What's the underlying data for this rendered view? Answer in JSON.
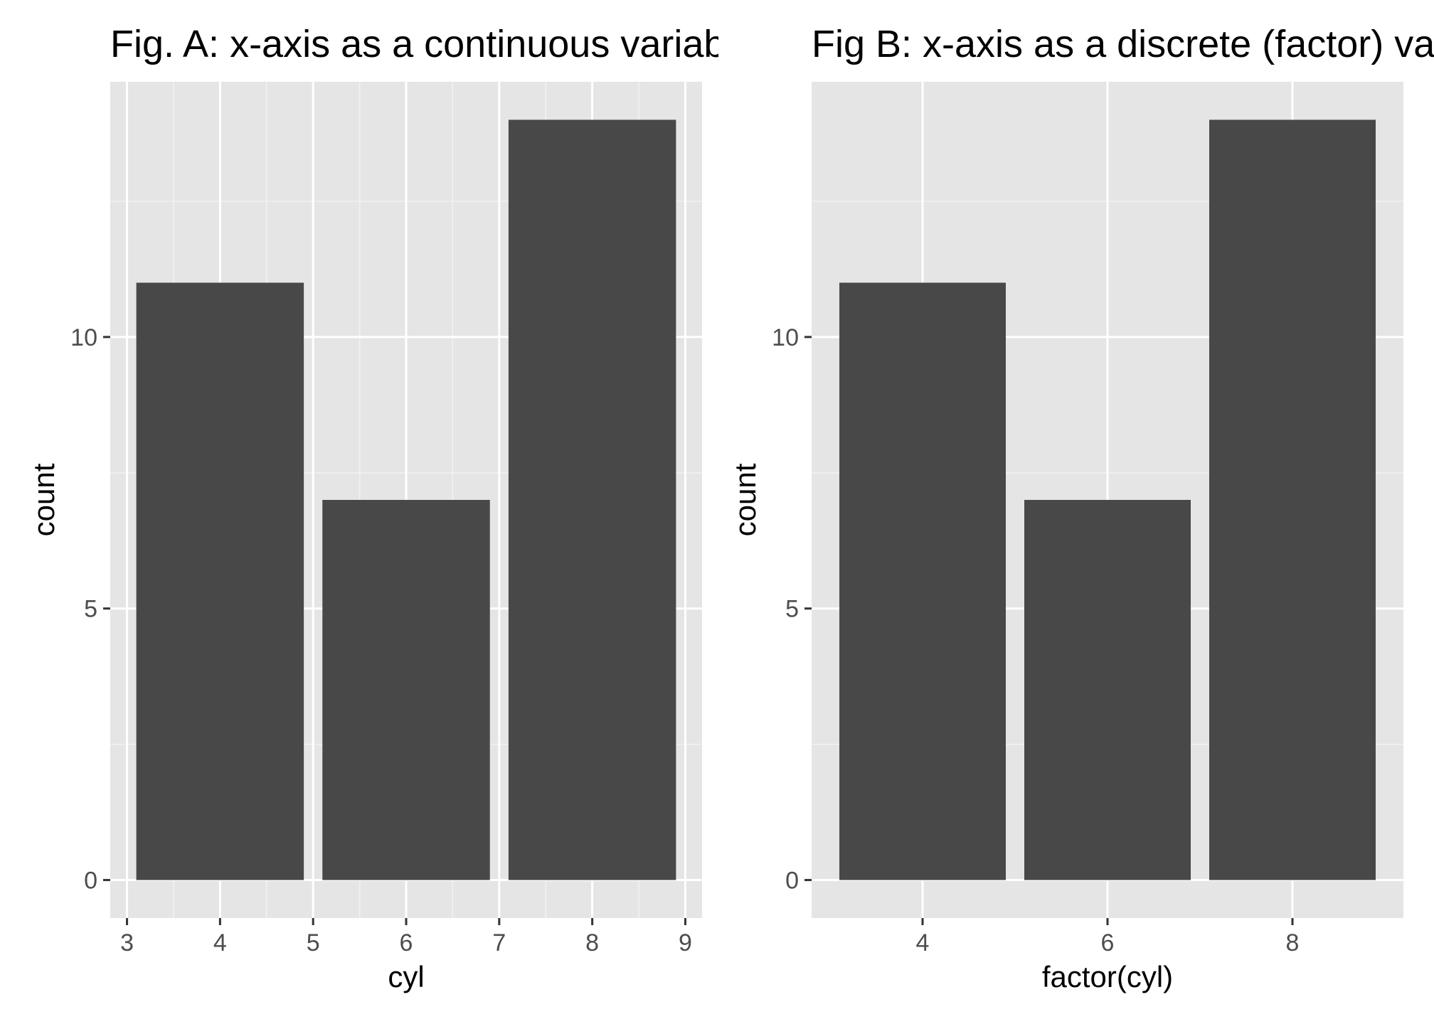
{
  "colors": {
    "panel_background": "#E5E5E5",
    "grid_major": "#FFFFFF",
    "grid_minor": "#F2F2F2",
    "bar_fill": "#484848",
    "tick_text": "#4D4D4D",
    "tick_mark": "#333333",
    "title_text": "#000000"
  },
  "chart_data": [
    {
      "type": "bar",
      "title": "Fig. A: x-axis as a continuous variable",
      "xlabel": "cyl",
      "ylabel": "count",
      "x_scale": "continuous",
      "x": [
        4,
        6,
        8
      ],
      "values": [
        11,
        7,
        14
      ],
      "bar_width": 1.8,
      "xlim": [
        2.82,
        9.18
      ],
      "ylim": [
        -0.7,
        14.7
      ],
      "x_ticks": [
        3,
        4,
        5,
        6,
        7,
        8,
        9
      ],
      "x_tick_labels": [
        "3",
        "4",
        "5",
        "6",
        "7",
        "8",
        "9"
      ],
      "y_ticks": [
        0,
        5,
        10
      ],
      "y_tick_labels": [
        "0",
        "5",
        "10"
      ],
      "y_minor_ticks": [
        2.5,
        7.5,
        12.5
      ],
      "x_minor_ticks": [
        3.5,
        4.5,
        5.5,
        6.5,
        7.5,
        8.5
      ],
      "grid": true,
      "legend": "none"
    },
    {
      "type": "bar",
      "title": "Fig B: x-axis as a discrete (factor) variable",
      "xlabel": "factor(cyl)",
      "ylabel": "count",
      "x_scale": "discrete",
      "categories": [
        "4",
        "6",
        "8"
      ],
      "values": [
        11,
        7,
        14
      ],
      "bar_width": 0.9,
      "xlim": [
        0.4,
        3.6
      ],
      "ylim": [
        -0.7,
        14.7
      ],
      "y_ticks": [
        0,
        5,
        10
      ],
      "y_tick_labels": [
        "0",
        "5",
        "10"
      ],
      "y_minor_ticks": [
        2.5,
        7.5,
        12.5
      ],
      "grid": true,
      "legend": "none"
    }
  ]
}
